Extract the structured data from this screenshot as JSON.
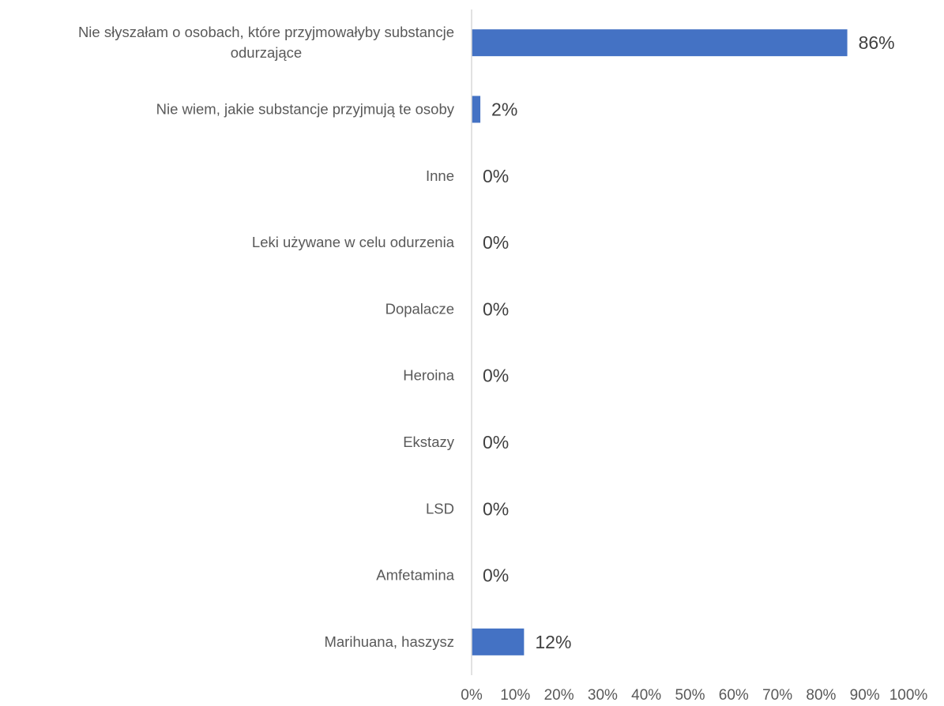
{
  "chart_data": {
    "type": "bar",
    "orientation": "horizontal",
    "categories": [
      [
        "Nie słyszałam o osobach, które przyjmowałyby substancje",
        "odurzające"
      ],
      [
        "Nie wiem, jakie substancje przyjmują te osoby"
      ],
      [
        "Inne"
      ],
      [
        "Leki używane w celu odurzenia"
      ],
      [
        "Dopalacze"
      ],
      [
        "Heroina"
      ],
      [
        "Ekstazy"
      ],
      [
        "LSD"
      ],
      [
        "Amfetamina"
      ],
      [
        "Marihuana, haszysz"
      ]
    ],
    "values": [
      86,
      2,
      0,
      0,
      0,
      0,
      0,
      0,
      0,
      12
    ],
    "data_labels": [
      "86%",
      "2%",
      "0%",
      "0%",
      "0%",
      "0%",
      "0%",
      "0%",
      "0%",
      "12%"
    ],
    "xlim": [
      0,
      100
    ],
    "x_ticks": [
      "0%",
      "10%",
      "20%",
      "30%",
      "40%",
      "50%",
      "60%",
      "70%",
      "80%",
      "90%",
      "100%"
    ],
    "grid": false,
    "legend": "none",
    "bar_color": "#4472C4",
    "axis_color": "#D9D9D9"
  }
}
